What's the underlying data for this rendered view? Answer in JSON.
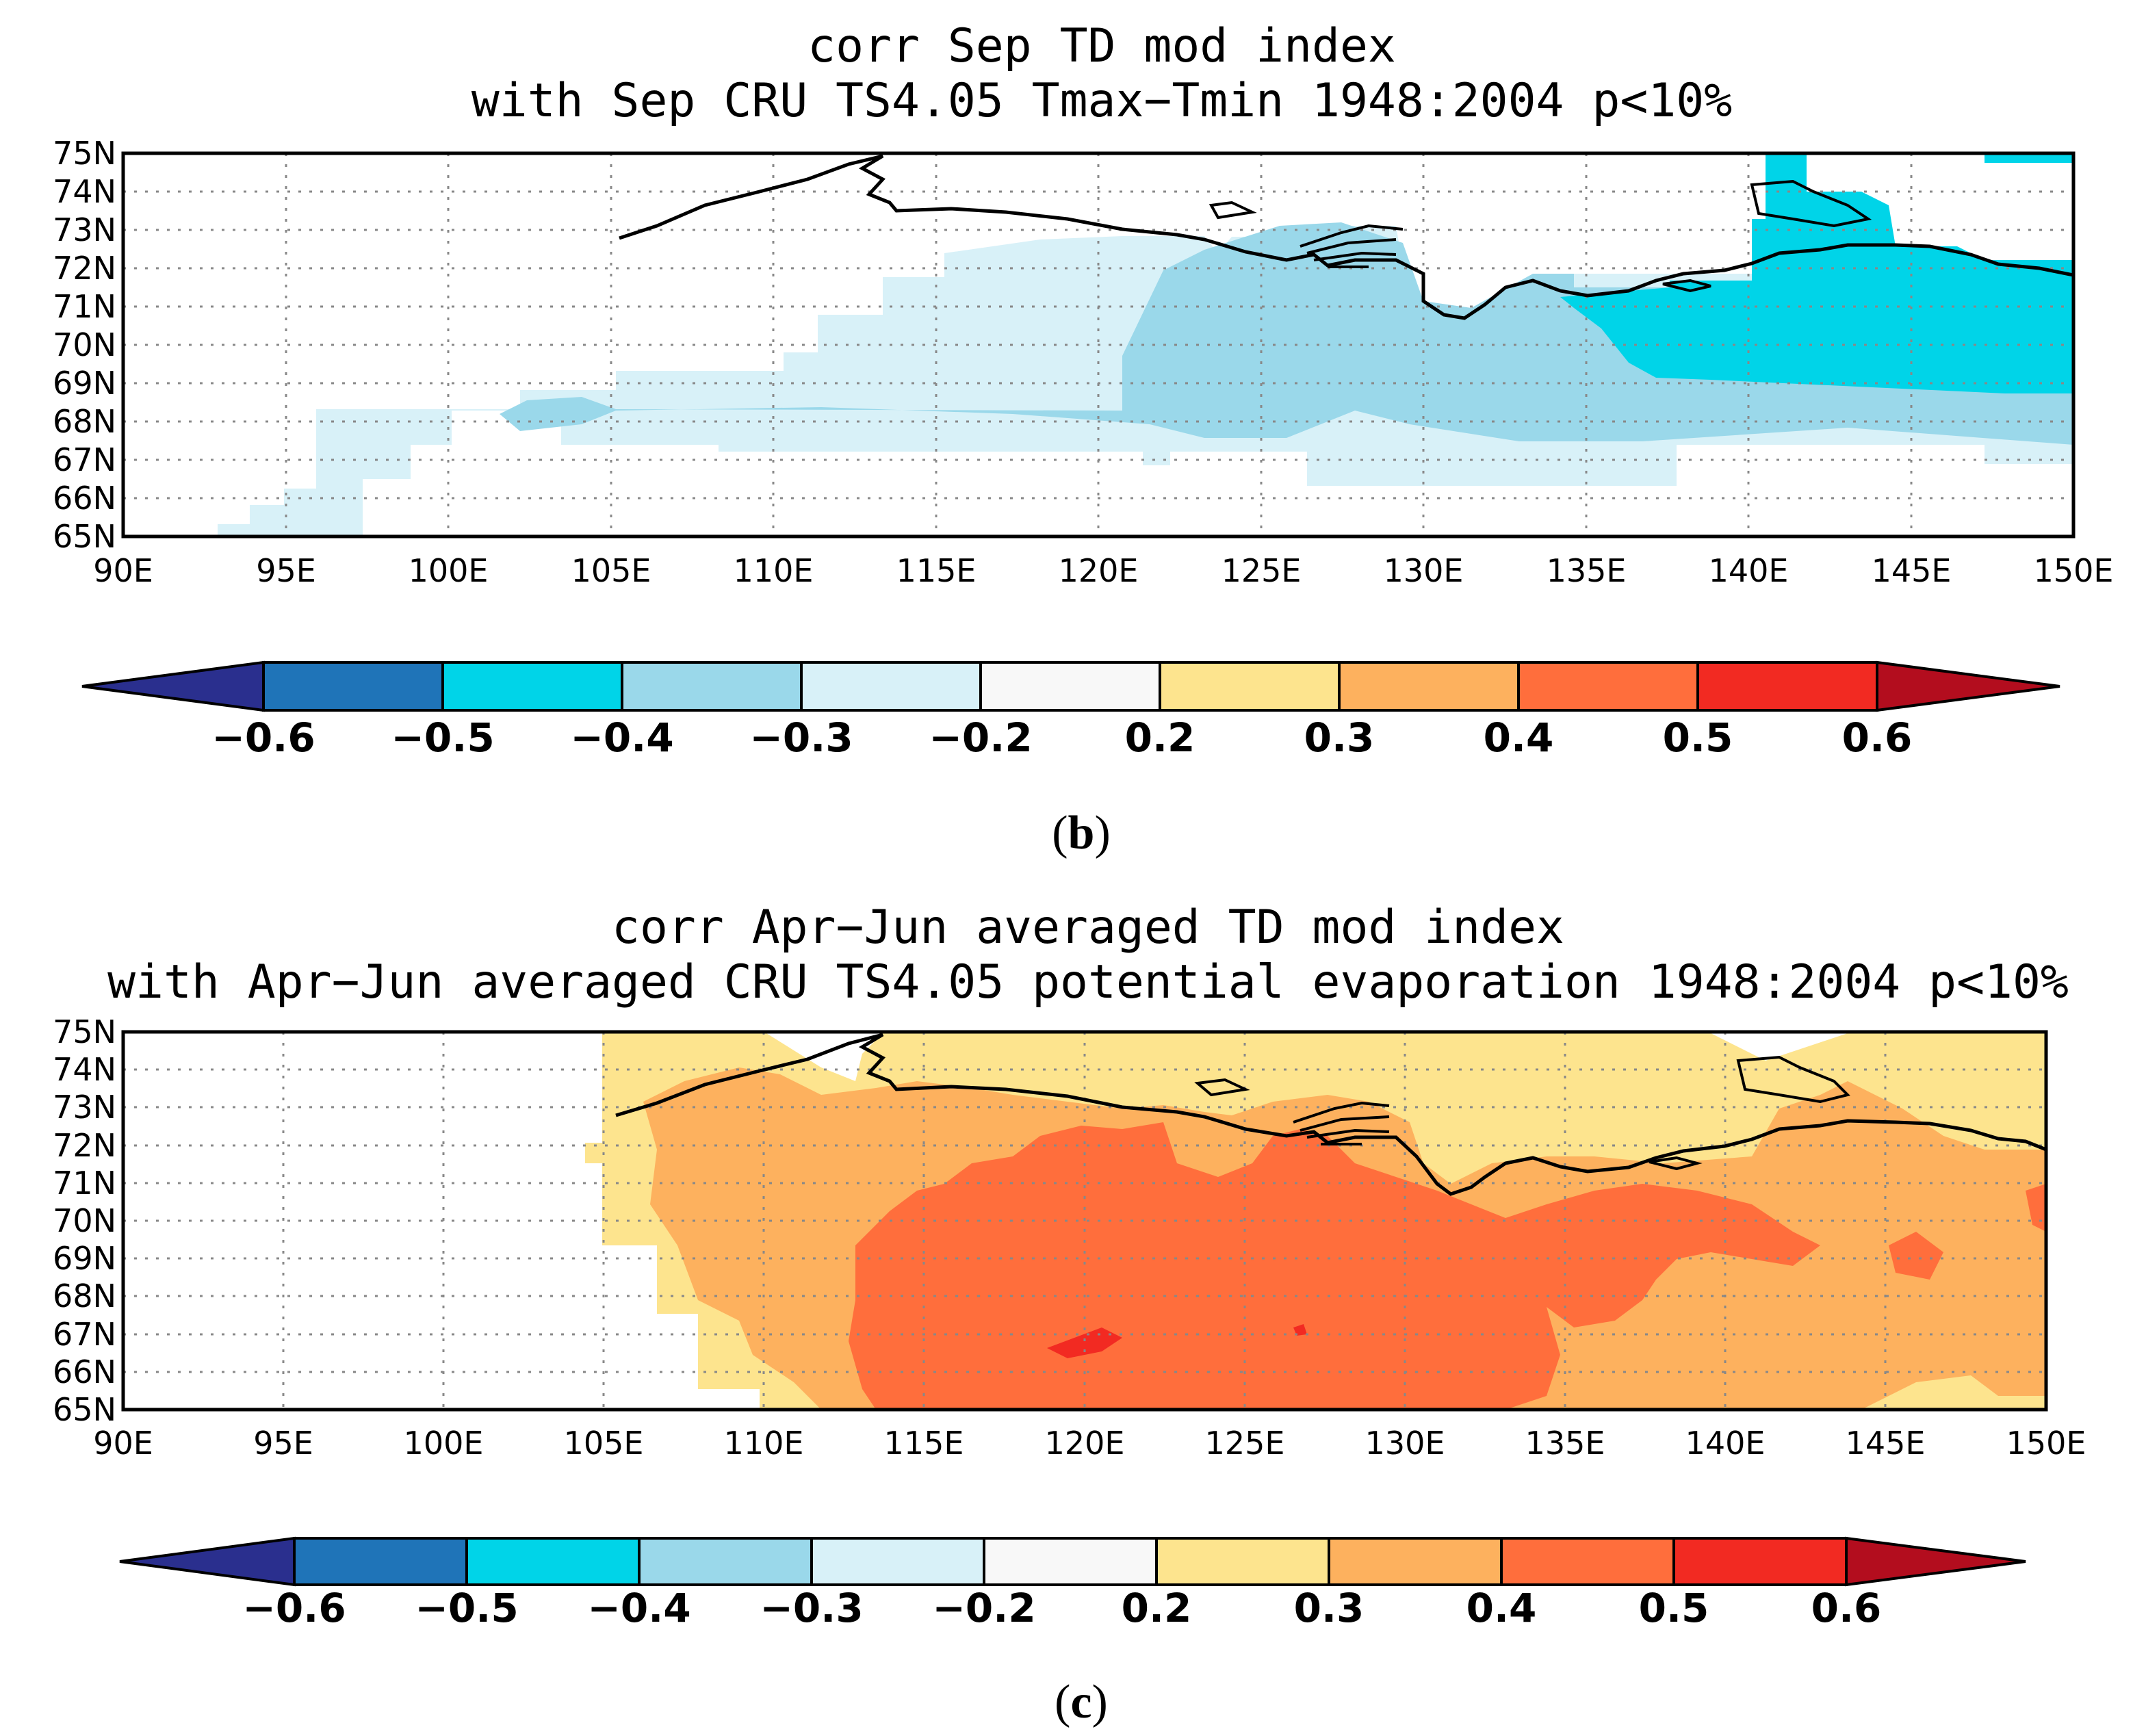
{
  "colorbar": {
    "levels": [
      "−0.6",
      "−0.5",
      "−0.4",
      "−0.3",
      "−0.2",
      "0.2",
      "0.3",
      "0.4",
      "0.5",
      "0.6"
    ],
    "colors": [
      "#2a2f8e",
      "#1f74b8",
      "#00d4e8",
      "#9ad8ea",
      "#d8f1f8",
      "#f8f8f8",
      "#fde48e",
      "#fdb15e",
      "#ff6e3c",
      "#f22a22",
      "#b30d1e"
    ]
  },
  "chart_data": [
    {
      "type": "heatmap",
      "panel_label": "b",
      "title_line1": "corr Sep TD mod index",
      "title_line2": "with Sep CRU TS4.05 Tmax−Tmin 1948:2004 p<10%",
      "x_ticks": [
        "90E",
        "95E",
        "100E",
        "105E",
        "110E",
        "115E",
        "120E",
        "125E",
        "130E",
        "135E",
        "140E",
        "145E",
        "150E"
      ],
      "y_ticks": [
        "65N",
        "66N",
        "67N",
        "68N",
        "69N",
        "70N",
        "71N",
        "72N",
        "73N",
        "74N",
        "75N"
      ],
      "xlim": [
        90,
        150
      ],
      "ylim": [
        65,
        75
      ],
      "color_levels": [
        -0.6,
        -0.5,
        -0.4,
        -0.3,
        -0.2,
        0.2,
        0.3,
        0.4,
        0.5,
        0.6
      ],
      "regions": [
        {
          "level": "-0.3 to -0.2",
          "approx_extent_lon": [
            93,
            150
          ],
          "approx_extent_lat": [
            65,
            72
          ]
        },
        {
          "level": "-0.4 to -0.3",
          "approx_extent_lon": [
            102,
            150
          ],
          "approx_extent_lat": [
            67.5,
            72.5
          ]
        },
        {
          "level": "-0.5 to -0.4",
          "approx_extent_lon": [
            135,
            150
          ],
          "approx_extent_lat": [
            68.5,
            75
          ]
        }
      ]
    },
    {
      "type": "heatmap",
      "panel_label": "c",
      "title_line1": "corr Apr−Jun averaged TD mod index",
      "title_line2": "with Apr−Jun averaged CRU TS4.05 potential evaporation 1948:2004 p<10%",
      "x_ticks": [
        "90E",
        "95E",
        "100E",
        "105E",
        "110E",
        "115E",
        "120E",
        "125E",
        "130E",
        "135E",
        "140E",
        "145E",
        "150E"
      ],
      "y_ticks": [
        "65N",
        "66N",
        "67N",
        "68N",
        "69N",
        "70N",
        "71N",
        "72N",
        "73N",
        "74N",
        "75N"
      ],
      "xlim": [
        90,
        150
      ],
      "ylim": [
        65,
        75
      ],
      "color_levels": [
        -0.6,
        -0.5,
        -0.4,
        -0.3,
        -0.2,
        0.2,
        0.3,
        0.4,
        0.5,
        0.6
      ],
      "regions": [
        {
          "level": "0.2 to 0.3",
          "approx_extent_lon": [
            104,
            150
          ],
          "approx_extent_lat": [
            65,
            75
          ]
        },
        {
          "level": "0.3 to 0.4",
          "approx_extent_lon": [
            106,
            150
          ],
          "approx_extent_lat": [
            65,
            73
          ]
        },
        {
          "level": "0.4 to 0.5",
          "approx_extent_lon": [
            112,
            143
          ],
          "approx_extent_lat": [
            65,
            72.5
          ]
        },
        {
          "level": "0.5 to 0.6",
          "approx_extent_lon": [
            119.5,
            121
          ],
          "approx_extent_lat": [
            66.5,
            67
          ]
        }
      ]
    }
  ]
}
